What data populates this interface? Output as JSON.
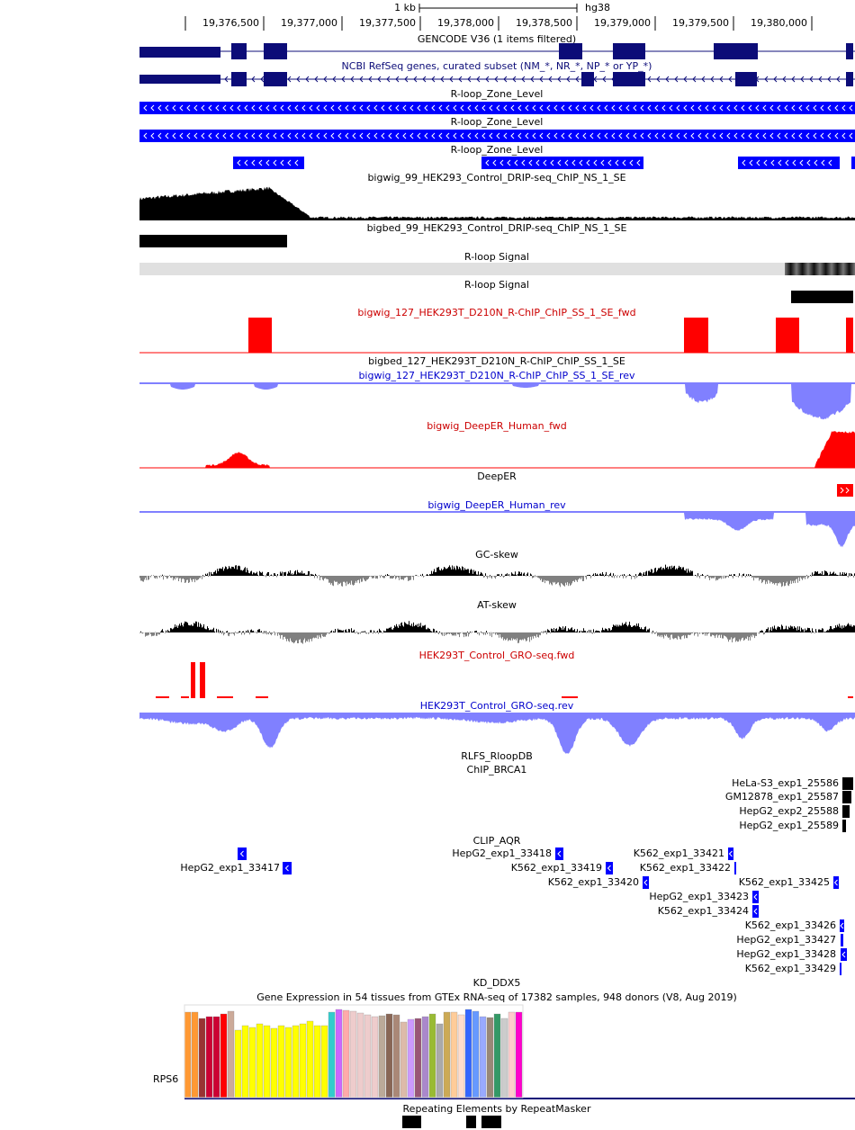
{
  "ruler": {
    "scale_label": "1 kb",
    "assembly": "hg38",
    "ticks": [
      "19,376,500",
      "19,377,000",
      "19,377,500",
      "19,378,000",
      "19,378,500",
      "19,379,000",
      "19,379,500",
      "19,380,000"
    ]
  },
  "tracks": [
    {
      "label": "GENCODE V36 (1 items filtered)",
      "color": "#000000"
    },
    {
      "label": "NCBI RefSeq genes, curated subset (NM_*, NR_*, NP_* or YP_*)",
      "color": "#0c0c78"
    },
    {
      "label": "R-loop_Zone_Level",
      "color": "#000000"
    },
    {
      "label": "R-loop_Zone_Level",
      "color": "#000000"
    },
    {
      "label": "R-loop_Zone_Level",
      "color": "#000000"
    },
    {
      "label": "bigwig_99_HEK293_Control_DRIP-seq_ChIP_NS_1_SE",
      "color": "#000000"
    },
    {
      "label": "bigbed_99_HEK293_Control_DRIP-seq_ChIP_NS_1_SE",
      "color": "#000000"
    },
    {
      "label": "R-loop Signal",
      "color": "#000000"
    },
    {
      "label": "R-loop Signal",
      "color": "#000000"
    },
    {
      "label": "bigwig_127_HEK293T_D210N_R-ChIP_ChIP_SS_1_SE_fwd",
      "color": "#cc0000"
    },
    {
      "label": "bigbed_127_HEK293T_D210N_R-ChIP_ChIP_SS_1_SE",
      "color": "#000000"
    },
    {
      "label": "bigwig_127_HEK293T_D210N_R-ChIP_ChIP_SS_1_SE_rev",
      "color": "#0000cc"
    },
    {
      "label": "bigwig_DeepER_Human_fwd",
      "color": "#cc0000"
    },
    {
      "label": "DeepER",
      "color": "#000000"
    },
    {
      "label": "bigwig_DeepER_Human_rev",
      "color": "#0000cc"
    },
    {
      "label": "GC-skew",
      "color": "#000000"
    },
    {
      "label": "AT-skew",
      "color": "#000000"
    },
    {
      "label": "HEK293T_Control_GRO-seq.fwd",
      "color": "#cc0000"
    },
    {
      "label": "HEK293T_Control_GRO-seq.rev",
      "color": "#0000cc"
    },
    {
      "label": "RLFS_RloopDB",
      "color": "#000000"
    },
    {
      "label": "ChIP_BRCA1",
      "color": "#000000",
      "items": [
        "HeLa-S3_exp1_25586",
        "GM12878_exp1_25587",
        "HepG2_exp2_25588",
        "HepG2_exp1_25589"
      ]
    },
    {
      "label": "CLIP_AQR",
      "color": "#000000",
      "items": [
        "HepG2_exp1_33417",
        "HepG2_exp1_33418",
        "K562_exp1_33419",
        "K562_exp1_33420",
        "K562_exp1_33421",
        "K562_exp1_33422",
        "HepG2_exp1_33423",
        "K562_exp1_33424",
        "K562_exp1_33425",
        "K562_exp1_33426",
        "HepG2_exp1_33427",
        "HepG2_exp1_33428",
        "K562_exp1_33429"
      ]
    },
    {
      "label": "KD_DDX5",
      "color": "#000000"
    },
    {
      "label": "Gene Expression in 54 tissues from GTEx RNA-seq of 17382 samples, 948 donors (V8, Aug 2019)",
      "color": "#000000",
      "gene": "RPS6"
    },
    {
      "label": "Repeating Elements by RepeatMasker",
      "color": "#000000"
    }
  ]
}
